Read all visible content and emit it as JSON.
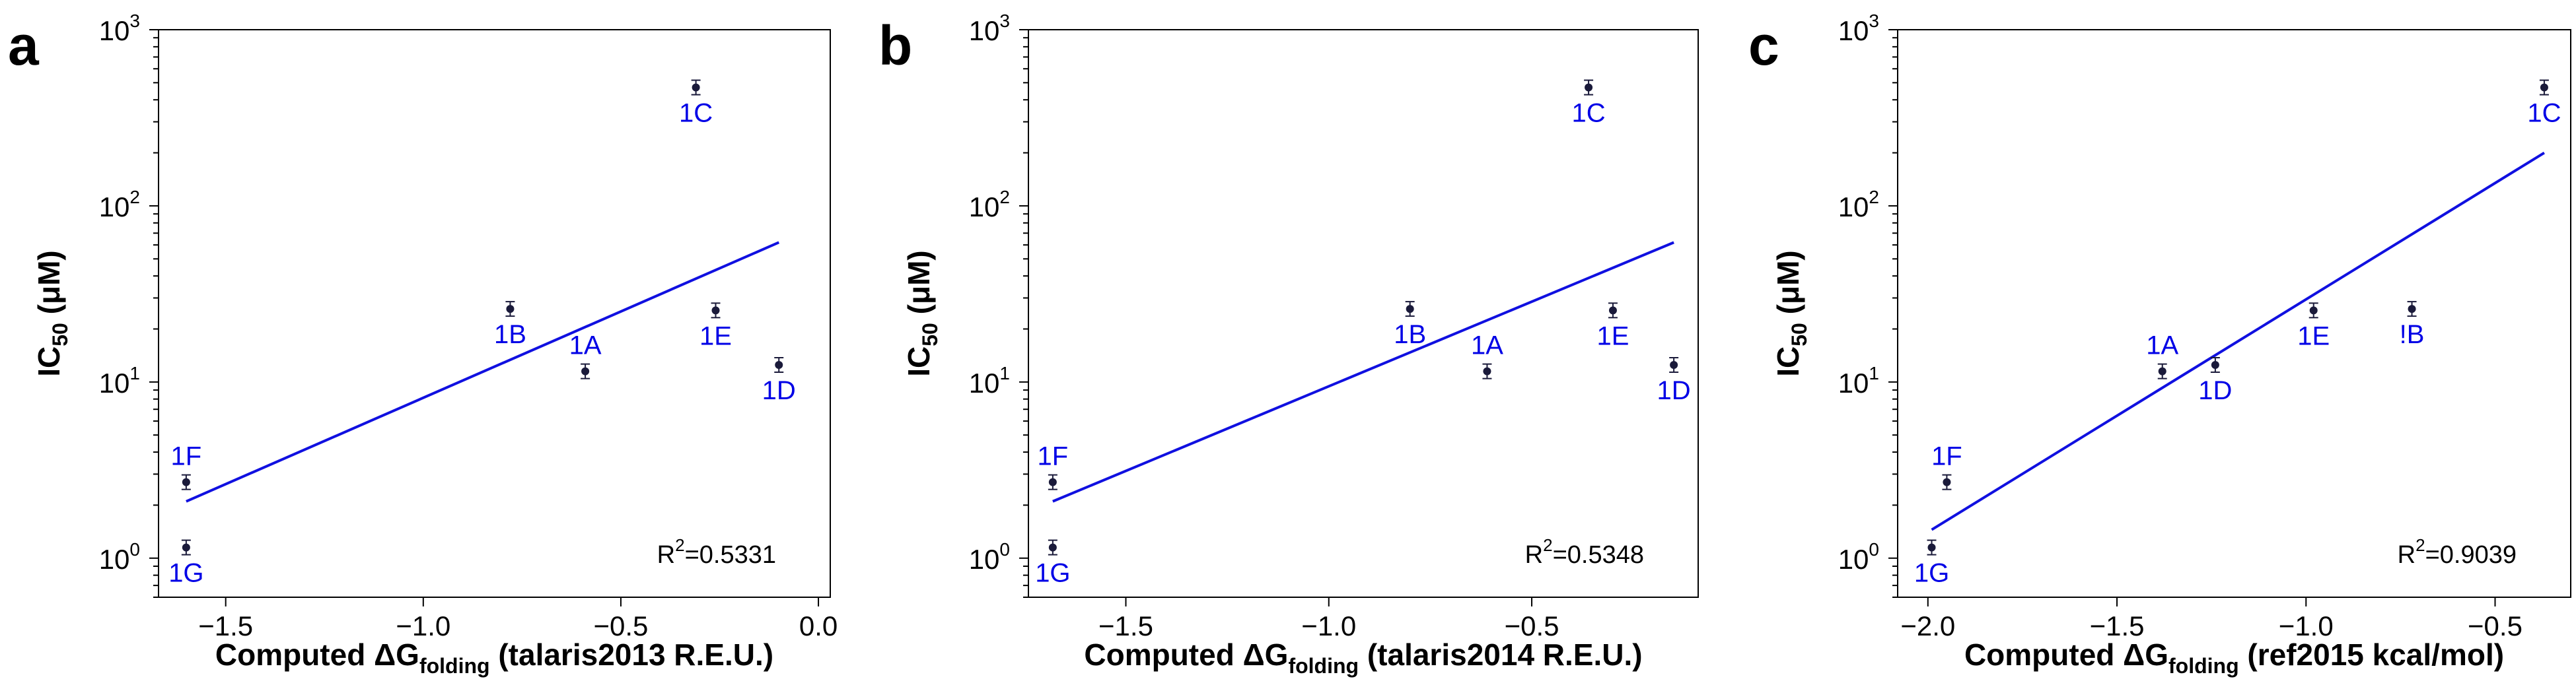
{
  "chart_data": [
    {
      "type": "scatter",
      "panel_letter": "a",
      "xlabel_main": "Computed ΔG",
      "xlabel_sub": "folding",
      "xlabel_tail": " (talaris2013 R.E.U.)",
      "ylabel_main": "IC",
      "ylabel_sub": "50",
      "ylabel_tail": " (μM)",
      "xlim": [
        -1.67,
        0.03
      ],
      "ylim": [
        0.6,
        1000
      ],
      "yscale": "log",
      "xticks": [
        -1.5,
        -1.0,
        -0.5,
        0.0
      ],
      "xtick_labels": [
        "−1.5",
        "−1.0",
        "−0.5",
        "0.0"
      ],
      "yticks": [
        1,
        10,
        100,
        1000
      ],
      "ytick_base": "10",
      "ytick_exponents": [
        "0",
        "1",
        "2",
        "3"
      ],
      "points": [
        {
          "label": "1F",
          "x": -1.6,
          "y": 2.7,
          "label_pos": "above"
        },
        {
          "label": "1G",
          "x": -1.6,
          "y": 1.15,
          "label_pos": "below"
        },
        {
          "label": "1B",
          "x": -0.78,
          "y": 26,
          "label_pos": "below"
        },
        {
          "label": "1A",
          "x": -0.59,
          "y": 11.5,
          "label_pos": "above"
        },
        {
          "label": "1C",
          "x": -0.31,
          "y": 470,
          "label_pos": "below"
        },
        {
          "label": "1E",
          "x": -0.26,
          "y": 25.5,
          "label_pos": "below"
        },
        {
          "label": "1D",
          "x": -0.1,
          "y": 12.5,
          "label_pos": "below"
        }
      ],
      "fit_line": {
        "x": [
          -1.6,
          -0.1
        ],
        "y": [
          2.1,
          62
        ]
      },
      "r2_base": "R",
      "r2_exp": "2",
      "r2_value": "=0.5331"
    },
    {
      "type": "scatter",
      "panel_letter": "b",
      "xlabel_main": "Computed ΔG",
      "xlabel_sub": "folding",
      "xlabel_tail": " (talaris2014 R.E.U.)",
      "ylabel_main": "IC",
      "ylabel_sub": "50",
      "ylabel_tail": " (μM)",
      "xlim": [
        -1.74,
        -0.09
      ],
      "ylim": [
        0.6,
        1000
      ],
      "yscale": "log",
      "xticks": [
        -1.5,
        -1.0,
        -0.5
      ],
      "xtick_labels": [
        "−1.5",
        "−1.0",
        "−0.5"
      ],
      "yticks": [
        1,
        10,
        100,
        1000
      ],
      "ytick_base": "10",
      "ytick_exponents": [
        "0",
        "1",
        "2",
        "3"
      ],
      "points": [
        {
          "label": "1F",
          "x": -1.68,
          "y": 2.7,
          "label_pos": "above"
        },
        {
          "label": "1G",
          "x": -1.68,
          "y": 1.15,
          "label_pos": "below"
        },
        {
          "label": "1B",
          "x": -0.8,
          "y": 26,
          "label_pos": "below"
        },
        {
          "label": "1A",
          "x": -0.61,
          "y": 11.5,
          "label_pos": "above"
        },
        {
          "label": "1C",
          "x": -0.36,
          "y": 470,
          "label_pos": "below"
        },
        {
          "label": "1E",
          "x": -0.3,
          "y": 25.5,
          "label_pos": "below"
        },
        {
          "label": "1D",
          "x": -0.15,
          "y": 12.5,
          "label_pos": "below"
        }
      ],
      "fit_line": {
        "x": [
          -1.68,
          -0.15
        ],
        "y": [
          2.1,
          62
        ]
      },
      "r2_base": "R",
      "r2_exp": "2",
      "r2_value": "=0.5348"
    },
    {
      "type": "scatter",
      "panel_letter": "c",
      "xlabel_main": "Computed ΔG",
      "xlabel_sub": "folding",
      "xlabel_tail": " (ref2015 kcal/mol)",
      "ylabel_main": "IC",
      "ylabel_sub": "50",
      "ylabel_tail": " (μM)",
      "xlim": [
        -2.08,
        -0.3
      ],
      "ylim": [
        0.6,
        1000
      ],
      "yscale": "log",
      "xticks": [
        -2.0,
        -1.5,
        -1.0,
        -0.5
      ],
      "xtick_labels": [
        "−2.0",
        "−1.5",
        "−1.0",
        "−0.5"
      ],
      "yticks": [
        1,
        10,
        100,
        1000
      ],
      "ytick_base": "10",
      "ytick_exponents": [
        "0",
        "1",
        "2",
        "3"
      ],
      "points": [
        {
          "label": "1F",
          "x": -1.95,
          "y": 2.7,
          "label_pos": "above"
        },
        {
          "label": "1G",
          "x": -1.99,
          "y": 1.15,
          "label_pos": "below"
        },
        {
          "label": "1A",
          "x": -1.38,
          "y": 11.5,
          "label_pos": "above"
        },
        {
          "label": "1D",
          "x": -1.24,
          "y": 12.5,
          "label_pos": "below"
        },
        {
          "label": "1E",
          "x": -0.98,
          "y": 25.5,
          "label_pos": "below"
        },
        {
          "label": "!B",
          "x": -0.72,
          "y": 26,
          "label_pos": "below"
        },
        {
          "label": "1C",
          "x": -0.37,
          "y": 470,
          "label_pos": "below"
        }
      ],
      "fit_line": {
        "x": [
          -1.99,
          -0.37
        ],
        "y": [
          1.45,
          200
        ]
      },
      "r2_base": "R",
      "r2_exp": "2",
      "r2_value": "=0.9039"
    }
  ]
}
